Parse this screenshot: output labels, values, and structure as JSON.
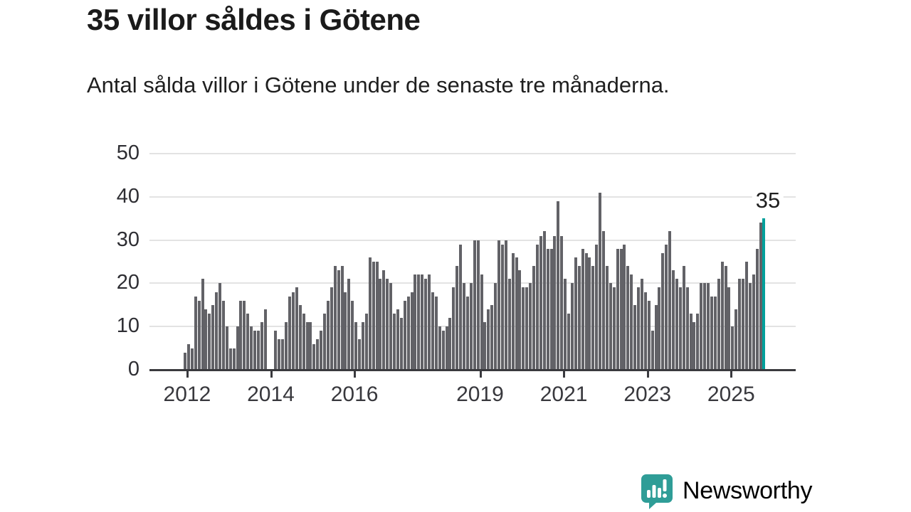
{
  "header": {
    "title": "35 villor såldes i Götene",
    "subtitle": "Antal sålda villor i Götene under de senaste tre månaderna."
  },
  "chart_data": {
    "type": "bar",
    "title": "35 villor såldes i Götene",
    "subtitle": "Antal sålda villor i Götene under de senaste tre månaderna.",
    "unit": "sålda villor per månad (antal)",
    "start_month": "2011-12",
    "end_month": "2025-10",
    "values": [
      4,
      6,
      5,
      17,
      16,
      21,
      14,
      13,
      15,
      18,
      20,
      16,
      10,
      5,
      5,
      10,
      16,
      16,
      13,
      10,
      9,
      9,
      11,
      14,
      0,
      0,
      9,
      7,
      7,
      11,
      17,
      18,
      19,
      15,
      13,
      11,
      11,
      6,
      7,
      9,
      13,
      16,
      19,
      24,
      23,
      24,
      18,
      21,
      16,
      11,
      7,
      11,
      13,
      26,
      25,
      25,
      21,
      23,
      21,
      20,
      13,
      14,
      12,
      16,
      17,
      18,
      22,
      22,
      22,
      21,
      22,
      18,
      17,
      10,
      9,
      10,
      12,
      19,
      24,
      29,
      20,
      17,
      20,
      30,
      30,
      22,
      11,
      14,
      15,
      20,
      30,
      29,
      30,
      21,
      27,
      26,
      23,
      19,
      19,
      20,
      24,
      29,
      31,
      32,
      28,
      28,
      31,
      39,
      31,
      21,
      13,
      20,
      26,
      24,
      28,
      27,
      26,
      24,
      29,
      41,
      32,
      24,
      20,
      19,
      28,
      28,
      29,
      24,
      22,
      15,
      19,
      21,
      18,
      16,
      9,
      15,
      19,
      27,
      29,
      32,
      23,
      21,
      19,
      24,
      19,
      13,
      11,
      13,
      20,
      20,
      20,
      17,
      17,
      21,
      25,
      24,
      19,
      10,
      14,
      21,
      21,
      25,
      20,
      22,
      28,
      34,
      35
    ],
    "highlight_last_bar": true,
    "annotation": {
      "text": "35",
      "value": 35
    },
    "bar_color": "#626267",
    "highlight_color": "#00a09b",
    "grid": "horizontal",
    "ylim": [
      0,
      50
    ],
    "y_ticks": [
      0,
      10,
      20,
      30,
      40,
      50
    ],
    "x_ticks": [
      {
        "label": "2012",
        "month_index": 1
      },
      {
        "label": "2014",
        "month_index": 25
      },
      {
        "label": "2016",
        "month_index": 49
      },
      {
        "label": "2019",
        "month_index": 85
      },
      {
        "label": "2021",
        "month_index": 109
      },
      {
        "label": "2023",
        "month_index": 133
      },
      {
        "label": "2025",
        "month_index": 157
      }
    ],
    "legend": null
  },
  "footer": {
    "brand": "Newsworthy",
    "brand_color": "#2f9d97"
  }
}
